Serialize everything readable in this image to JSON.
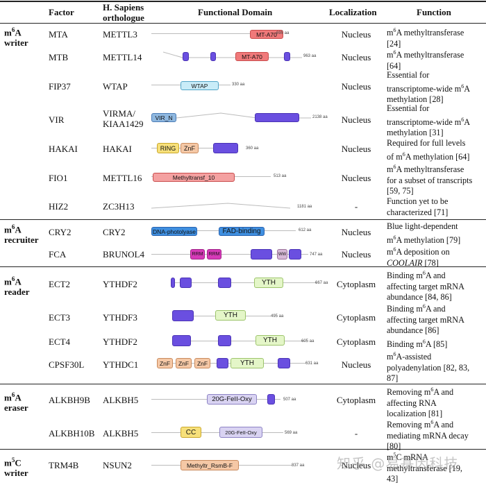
{
  "header": {
    "factor": "Factor",
    "ortholog_line1": "H. Sapiens",
    "ortholog_line2": "orthologue",
    "domain": "Functional Domain",
    "localization": "Localization",
    "function": "Function"
  },
  "categories": {
    "writer": [
      "m6A",
      "writer"
    ],
    "recruiter": [
      "m6A",
      "recruiter"
    ],
    "reader": [
      "m6A",
      "reader"
    ],
    "eraser": [
      "m6A",
      "eraser"
    ],
    "m5c_writer": [
      "m5C",
      "writer"
    ]
  },
  "rows": [
    {
      "factor": "MTA",
      "ortholog": [
        "METTL3"
      ],
      "localization": "Nucleus",
      "function": [
        "m6A methyltransferase",
        "[24]"
      ],
      "length": "695 aa"
    },
    {
      "factor": "MTB",
      "ortholog": [
        "METTL14"
      ],
      "localization": "Nucleus",
      "function": [
        "m6A methyltransferase",
        "[64]"
      ],
      "length": "963 aa"
    },
    {
      "factor": "FIP37",
      "ortholog": [
        "WTAP"
      ],
      "localization": "Nucleus",
      "function": [
        "Essential for",
        "transcriptome-wide m6A",
        "methylation [28]"
      ],
      "length": "330 aa"
    },
    {
      "factor": "VIR",
      "ortholog": [
        "VIRMA/",
        "KIAA1429"
      ],
      "localization": "Nucleus",
      "function": [
        "Essential for",
        "transcriptome-wide m6A",
        "methylation [31]"
      ],
      "length": "2138 aa"
    },
    {
      "factor": "HAKAI",
      "ortholog": [
        "HAKAI"
      ],
      "localization": "Nucleus",
      "function": [
        "Required for full levels",
        "of m6A methylation [64]"
      ],
      "length": "360 aa"
    },
    {
      "factor": "FIO1",
      "ortholog": [
        "METTL16"
      ],
      "localization": "Nucleus",
      "function": [
        "m6A methyltransferase",
        "for a subset of transcripts",
        "[59, 75]"
      ],
      "length": "513 aa"
    },
    {
      "factor": "HIZ2",
      "ortholog": [
        "ZC3H13"
      ],
      "localization": "-",
      "function": [
        "Function yet to be",
        "characterized [71]"
      ],
      "length": "1181 aa"
    },
    {
      "factor": "CRY2",
      "ortholog": [
        "CRY2"
      ],
      "localization": "Nucleus",
      "function": [
        "Blue light-dependent",
        "m6A methylation [79]"
      ],
      "length": "612 aa"
    },
    {
      "factor": "FCA",
      "ortholog": [
        "BRUNOL4"
      ],
      "localization": "Nucleus",
      "function": [
        "m6A deposition on",
        "COOLAIR [78]"
      ],
      "length": "747 aa"
    },
    {
      "factor": "ECT2",
      "ortholog": [
        "YTHDF2"
      ],
      "localization": "Cytoplasm",
      "function": [
        "Binding m6A and",
        "affecting target mRNA",
        "abundance [84, 86]"
      ],
      "length": "667 aa"
    },
    {
      "factor": "ECT3",
      "ortholog": [
        "YTHDF3"
      ],
      "localization": "Cytoplasm",
      "function": [
        "Binding m6A and",
        "affecting target mRNA",
        "abundance [86]"
      ],
      "length": "495 aa"
    },
    {
      "factor": "ECT4",
      "ortholog": [
        "YTHDF2"
      ],
      "localization": "Cytoplasm",
      "function": [
        "Binding m6A [85]"
      ],
      "length": "605 aa"
    },
    {
      "factor": "CPSF30L",
      "ortholog": [
        "YTHDC1"
      ],
      "localization": "Nucleus",
      "function": [
        "m6A-assisted",
        "polyadenylation [82, 83,",
        "87]"
      ],
      "length": "631 aa"
    },
    {
      "factor": "ALKBH9B",
      "ortholog": [
        "ALKBH5"
      ],
      "localization": "Cytoplasm",
      "function": [
        "Removing m6A and",
        "affecting RNA",
        "localization [81]"
      ],
      "length": "507 aa"
    },
    {
      "factor": "ALKBH10B",
      "ortholog": [
        "ALKBH5"
      ],
      "localization": "-",
      "function": [
        "Removing m6A and",
        "mediating mRNA decay",
        "[80]"
      ],
      "length": "569 aa"
    },
    {
      "factor": "TRM4B",
      "ortholog": [
        "NSUN2"
      ],
      "localization": "Nucleus",
      "function": [
        "m5C mRNA",
        "methyltransferase [19,",
        "43]"
      ],
      "length": "837 aa"
    }
  ],
  "domain_labels": {
    "mta_a70": "MT-A70",
    "mtb_a70": "MT-A70",
    "wtap": "WTAP",
    "vir_n": "VIR_N",
    "ring": "RING",
    "znf": "ZnF",
    "methyltransf10": "Methyltransf_10",
    "dna_photolyase": "DNA-photolyase",
    "fad_binding": "FAD-binding",
    "rrm": "RRM",
    "ww": "WW",
    "yth": "YTH",
    "oxy": "20G-FeII-Oxy",
    "cc": "CC",
    "methyltr_rsmb": "Methyltr_RsmB-F"
  },
  "watermark": "知乎 @易基因科技",
  "colors": {
    "purple": "#6a4fe0",
    "red": "#f0797a",
    "blue": "#9fd8ef",
    "green": "#e4f6c8",
    "orange": "#f5c8a6",
    "yellow": "#f7e07a",
    "lilac": "#d9d3f2"
  }
}
